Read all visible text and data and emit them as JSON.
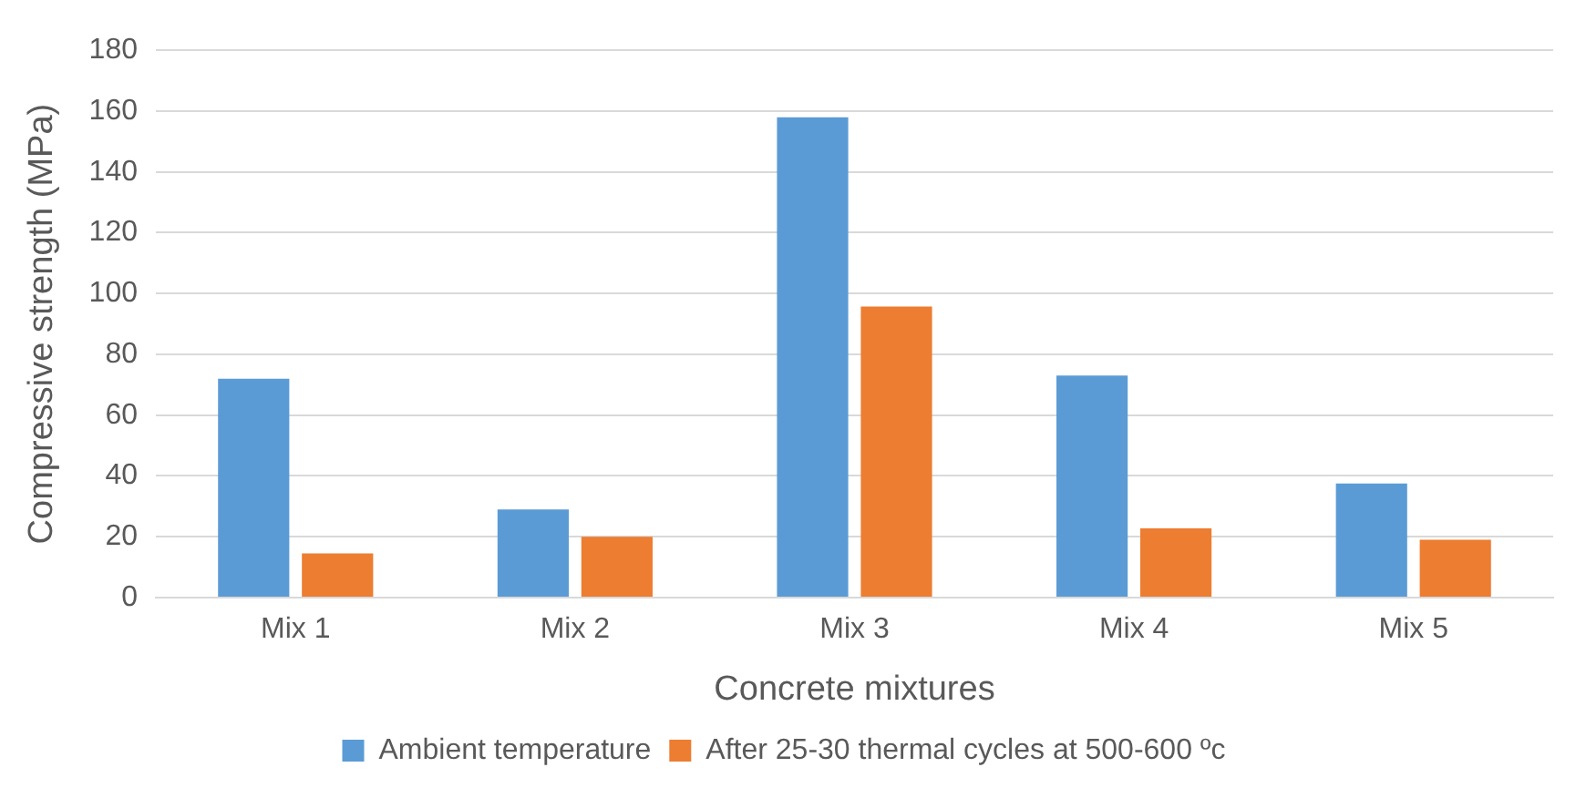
{
  "chart_data": {
    "type": "bar",
    "xlabel": "Concrete mixtures",
    "ylabel": "Compressive strength (MPa)",
    "categories": [
      "Mix 1",
      "Mix 2",
      "Mix 3",
      "Mix 4",
      "Mix 5"
    ],
    "series": [
      {
        "name": "Ambient temperature",
        "color": "#5b9bd5",
        "values": [
          72,
          29,
          158,
          73,
          37.5
        ]
      },
      {
        "name": "After 25-30 thermal cycles at 500-600 ºc",
        "color": "#ed7d31",
        "values": [
          14.5,
          20,
          95.7,
          22.8,
          19
        ]
      }
    ],
    "ylim": [
      0,
      180
    ],
    "yticks": [
      0,
      20,
      40,
      60,
      80,
      100,
      120,
      140,
      160,
      180
    ],
    "grid": "y",
    "legend": "bottom"
  }
}
